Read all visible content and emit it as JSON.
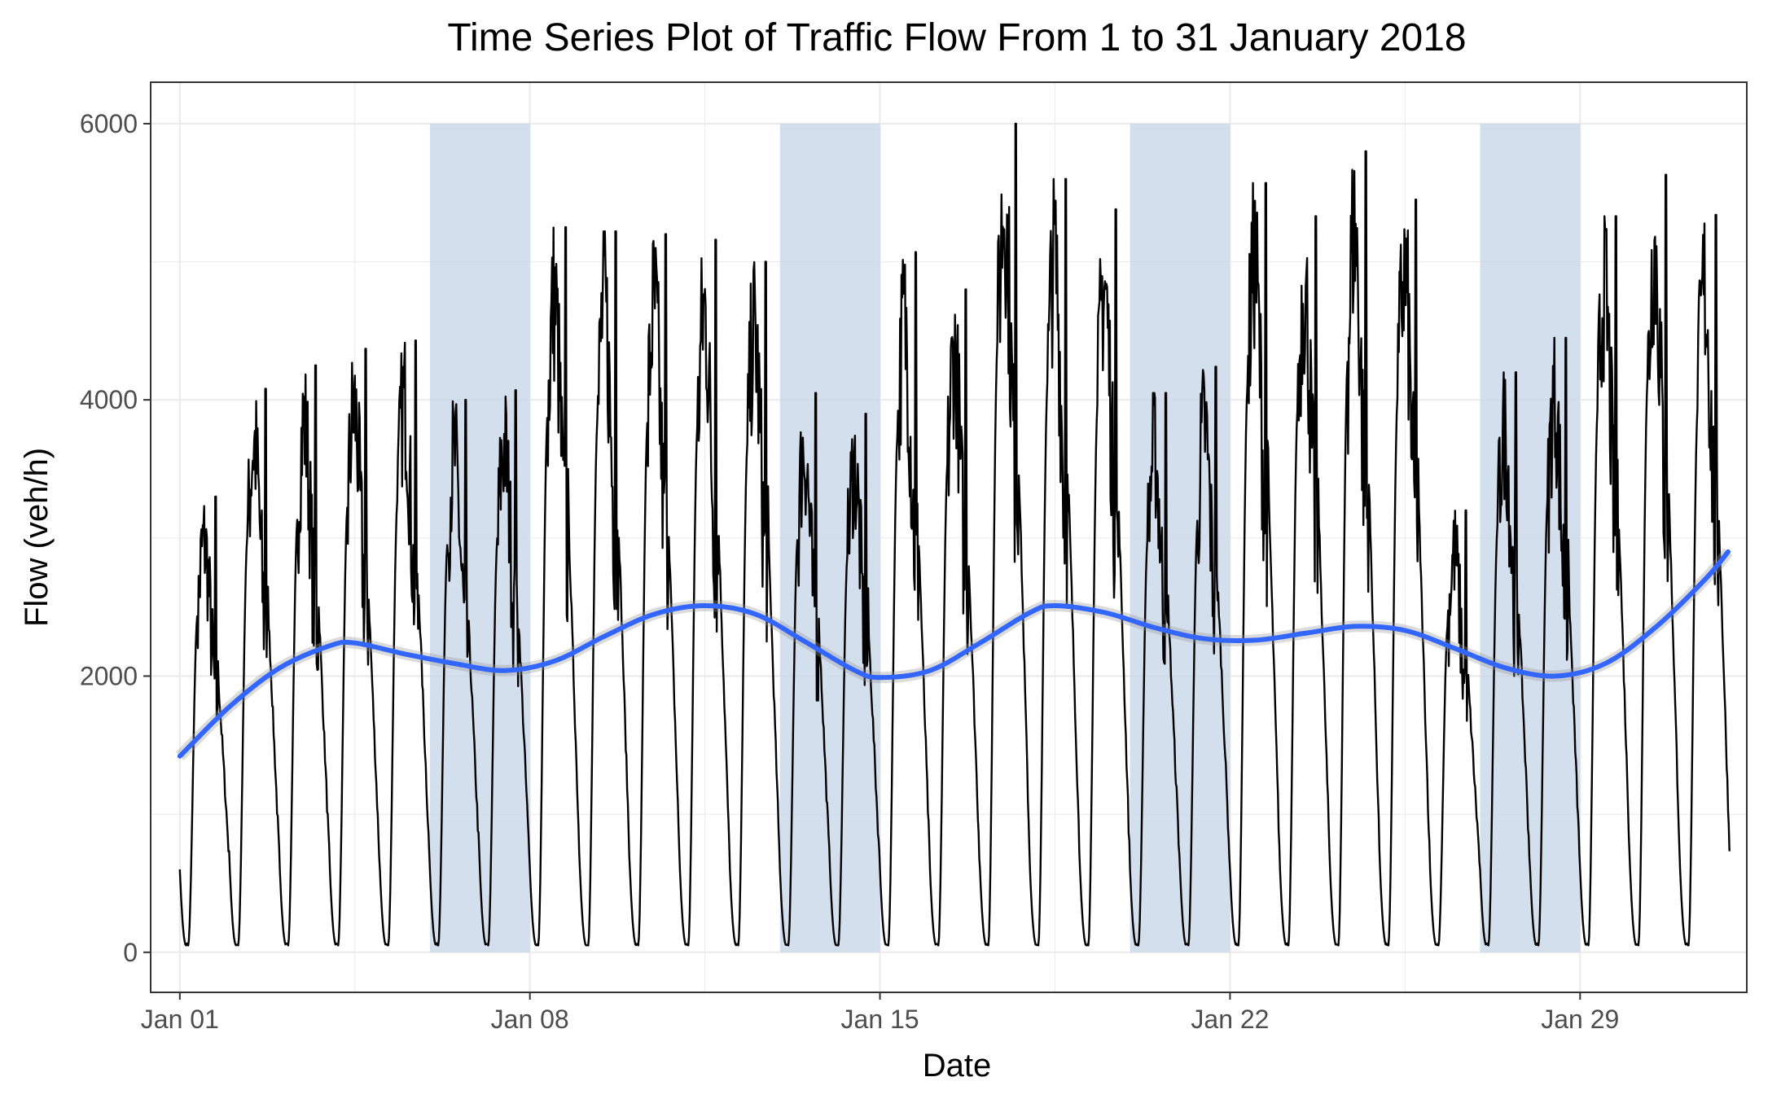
{
  "chart_data": {
    "type": "line",
    "title": "Time Series Plot of Traffic Flow From 1 to 31 January 2018",
    "xlabel": "Date",
    "ylabel": "Flow (veh/h)",
    "x_range": [
      "2017-12-31T10:00",
      "2018-02-01T08:00"
    ],
    "ylim": [
      -290,
      6300
    ],
    "x_ticks": [
      {
        "date": "2018-01-01",
        "label": "Jan 01"
      },
      {
        "date": "2018-01-08",
        "label": "Jan 08"
      },
      {
        "date": "2018-01-15",
        "label": "Jan 15"
      },
      {
        "date": "2018-01-22",
        "label": "Jan 22"
      },
      {
        "date": "2018-01-29",
        "label": "Jan 29"
      }
    ],
    "y_ticks": [
      0,
      2000,
      4000,
      6000
    ],
    "grid": true,
    "colors": {
      "flow": "#000000",
      "smooth": "#3366ff",
      "weekend_band": "#c9d7e8",
      "grid": "#ebebeb",
      "panel_border": "#333333"
    },
    "weekend_bands": [
      {
        "start": "2018-01-06",
        "end": "2018-01-08",
        "ymin": 0,
        "ymax": 6000
      },
      {
        "start": "2018-01-13",
        "end": "2018-01-15",
        "ymin": 0,
        "ymax": 6000
      },
      {
        "start": "2018-01-20",
        "end": "2018-01-22",
        "ymin": 0,
        "ymax": 6000
      },
      {
        "start": "2018-01-27",
        "end": "2018-01-29",
        "ymin": 0,
        "ymax": 6000
      }
    ],
    "series": [
      {
        "type": "line",
        "note": "hourly traffic flow, daily peaks read from chart",
        "daily_peaks": [
          {
            "date": "2018-01-01",
            "peak": 3300
          },
          {
            "date": "2018-01-02",
            "peak": 4080
          },
          {
            "date": "2018-01-03",
            "peak": 4250
          },
          {
            "date": "2018-01-04",
            "peak": 4370
          },
          {
            "date": "2018-01-05",
            "peak": 4430
          },
          {
            "date": "2018-01-06",
            "peak": 4000
          },
          {
            "date": "2018-01-07",
            "peak": 4070
          },
          {
            "date": "2018-01-08",
            "peak": 5250
          },
          {
            "date": "2018-01-09",
            "peak": 5220
          },
          {
            "date": "2018-01-10",
            "peak": 5200
          },
          {
            "date": "2018-01-11",
            "peak": 5160
          },
          {
            "date": "2018-01-12",
            "peak": 5000
          },
          {
            "date": "2018-01-13",
            "peak": 4050
          },
          {
            "date": "2018-01-14",
            "peak": 3900
          },
          {
            "date": "2018-01-15",
            "peak": 5070
          },
          {
            "date": "2018-01-16",
            "peak": 4800
          },
          {
            "date": "2018-01-17",
            "peak": 6000
          },
          {
            "date": "2018-01-18",
            "peak": 5600
          },
          {
            "date": "2018-01-19",
            "peak": 5380
          },
          {
            "date": "2018-01-20",
            "peak": 4050
          },
          {
            "date": "2018-01-21",
            "peak": 4240
          },
          {
            "date": "2018-01-22",
            "peak": 5570
          },
          {
            "date": "2018-01-23",
            "peak": 5330
          },
          {
            "date": "2018-01-24",
            "peak": 5800
          },
          {
            "date": "2018-01-25",
            "peak": 5450
          },
          {
            "date": "2018-01-26",
            "peak": 3200
          },
          {
            "date": "2018-01-27",
            "peak": 4200
          },
          {
            "date": "2018-01-28",
            "peak": 4450
          },
          {
            "date": "2018-01-29",
            "peak": 5330
          },
          {
            "date": "2018-01-30",
            "peak": 5630
          },
          {
            "date": "2018-01-31",
            "peak": 5340
          }
        ],
        "daily_min": 50
      },
      {
        "type": "smooth",
        "points": [
          {
            "date": "2018-01-01T00:00",
            "y": 1420
          },
          {
            "date": "2018-01-02T00:00",
            "y": 1780
          },
          {
            "date": "2018-01-03T00:00",
            "y": 2060
          },
          {
            "date": "2018-01-04T00:00",
            "y": 2220
          },
          {
            "date": "2018-01-04T12:00",
            "y": 2240
          },
          {
            "date": "2018-01-05T12:00",
            "y": 2160
          },
          {
            "date": "2018-01-06T12:00",
            "y": 2090
          },
          {
            "date": "2018-01-07T12:00",
            "y": 2040
          },
          {
            "date": "2018-01-08T12:00",
            "y": 2110
          },
          {
            "date": "2018-01-09T12:00",
            "y": 2290
          },
          {
            "date": "2018-01-10T12:00",
            "y": 2450
          },
          {
            "date": "2018-01-11T12:00",
            "y": 2510
          },
          {
            "date": "2018-01-12T12:00",
            "y": 2450
          },
          {
            "date": "2018-01-13T12:00",
            "y": 2250
          },
          {
            "date": "2018-01-14T12:00",
            "y": 2040
          },
          {
            "date": "2018-01-15T00:00",
            "y": 1990
          },
          {
            "date": "2018-01-16T00:00",
            "y": 2040
          },
          {
            "date": "2018-01-17T00:00",
            "y": 2240
          },
          {
            "date": "2018-01-18T00:00",
            "y": 2460
          },
          {
            "date": "2018-01-18T12:00",
            "y": 2510
          },
          {
            "date": "2018-01-19T12:00",
            "y": 2460
          },
          {
            "date": "2018-01-20T12:00",
            "y": 2350
          },
          {
            "date": "2018-01-21T12:00",
            "y": 2270
          },
          {
            "date": "2018-01-22T12:00",
            "y": 2260
          },
          {
            "date": "2018-01-23T12:00",
            "y": 2310
          },
          {
            "date": "2018-01-24T12:00",
            "y": 2360
          },
          {
            "date": "2018-01-25T12:00",
            "y": 2330
          },
          {
            "date": "2018-01-26T12:00",
            "y": 2200
          },
          {
            "date": "2018-01-27T12:00",
            "y": 2060
          },
          {
            "date": "2018-01-28T12:00",
            "y": 2000
          },
          {
            "date": "2018-01-29T12:00",
            "y": 2090
          },
          {
            "date": "2018-01-30T12:00",
            "y": 2350
          },
          {
            "date": "2018-01-31T12:00",
            "y": 2700
          },
          {
            "date": "2018-01-31T23:00",
            "y": 2900
          }
        ]
      }
    ]
  }
}
